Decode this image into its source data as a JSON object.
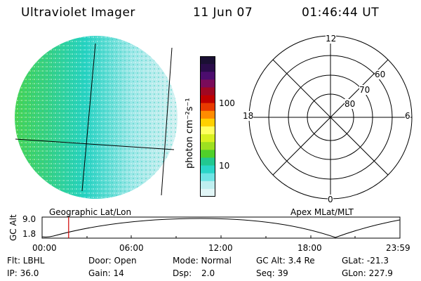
{
  "header": {
    "instrument": "Ultraviolet Imager",
    "date": "11 Jun 07",
    "time": "01:46:44 UT"
  },
  "colorbar": {
    "unit_label": "photon cm⁻²s⁻¹",
    "ticks": [
      "100",
      "10"
    ],
    "colors_top_to_bottom": [
      "#1a0f33",
      "#2a0c4a",
      "#4c0d6e",
      "#7a0b5a",
      "#a00722",
      "#c00000",
      "#e83a00",
      "#ff8c00",
      "#ffd000",
      "#ffff60",
      "#d9f020",
      "#9ee020",
      "#50d02a",
      "#22c890",
      "#2bd6c8",
      "#6fe4e4",
      "#bfeff0",
      "#e2f6f7"
    ]
  },
  "left_panel": {
    "label": "Geographic Lat/Lon"
  },
  "right_panel": {
    "label": "Apex MLat/MLT",
    "mlt_labels": {
      "top": "12",
      "bottom": "0",
      "left": "18",
      "right": "6"
    },
    "lat_labels": [
      "60",
      "70",
      "80"
    ]
  },
  "altitude_plot": {
    "ylabel": "GC Alt",
    "yticks": [
      "9.0",
      "1.8"
    ],
    "xticks": [
      "00:00",
      "06:00",
      "12:00",
      "18:00",
      "23:59"
    ],
    "marker_color": "#d00000",
    "marker_hours": 1.78
  },
  "info": {
    "filter": "Flt: LBHL",
    "ip": "IP: 36.0",
    "door": "Door: Open",
    "gain": "Gain: 14",
    "mode": "Mode: Normal",
    "dsp_label": "Dsp:",
    "dsp_value": "2.0",
    "gc_alt": "GC Alt: 3.4 Re",
    "seq": "Seq: 39",
    "glat": "GLat: -21.3",
    "glon": "GLon: 227.9"
  }
}
